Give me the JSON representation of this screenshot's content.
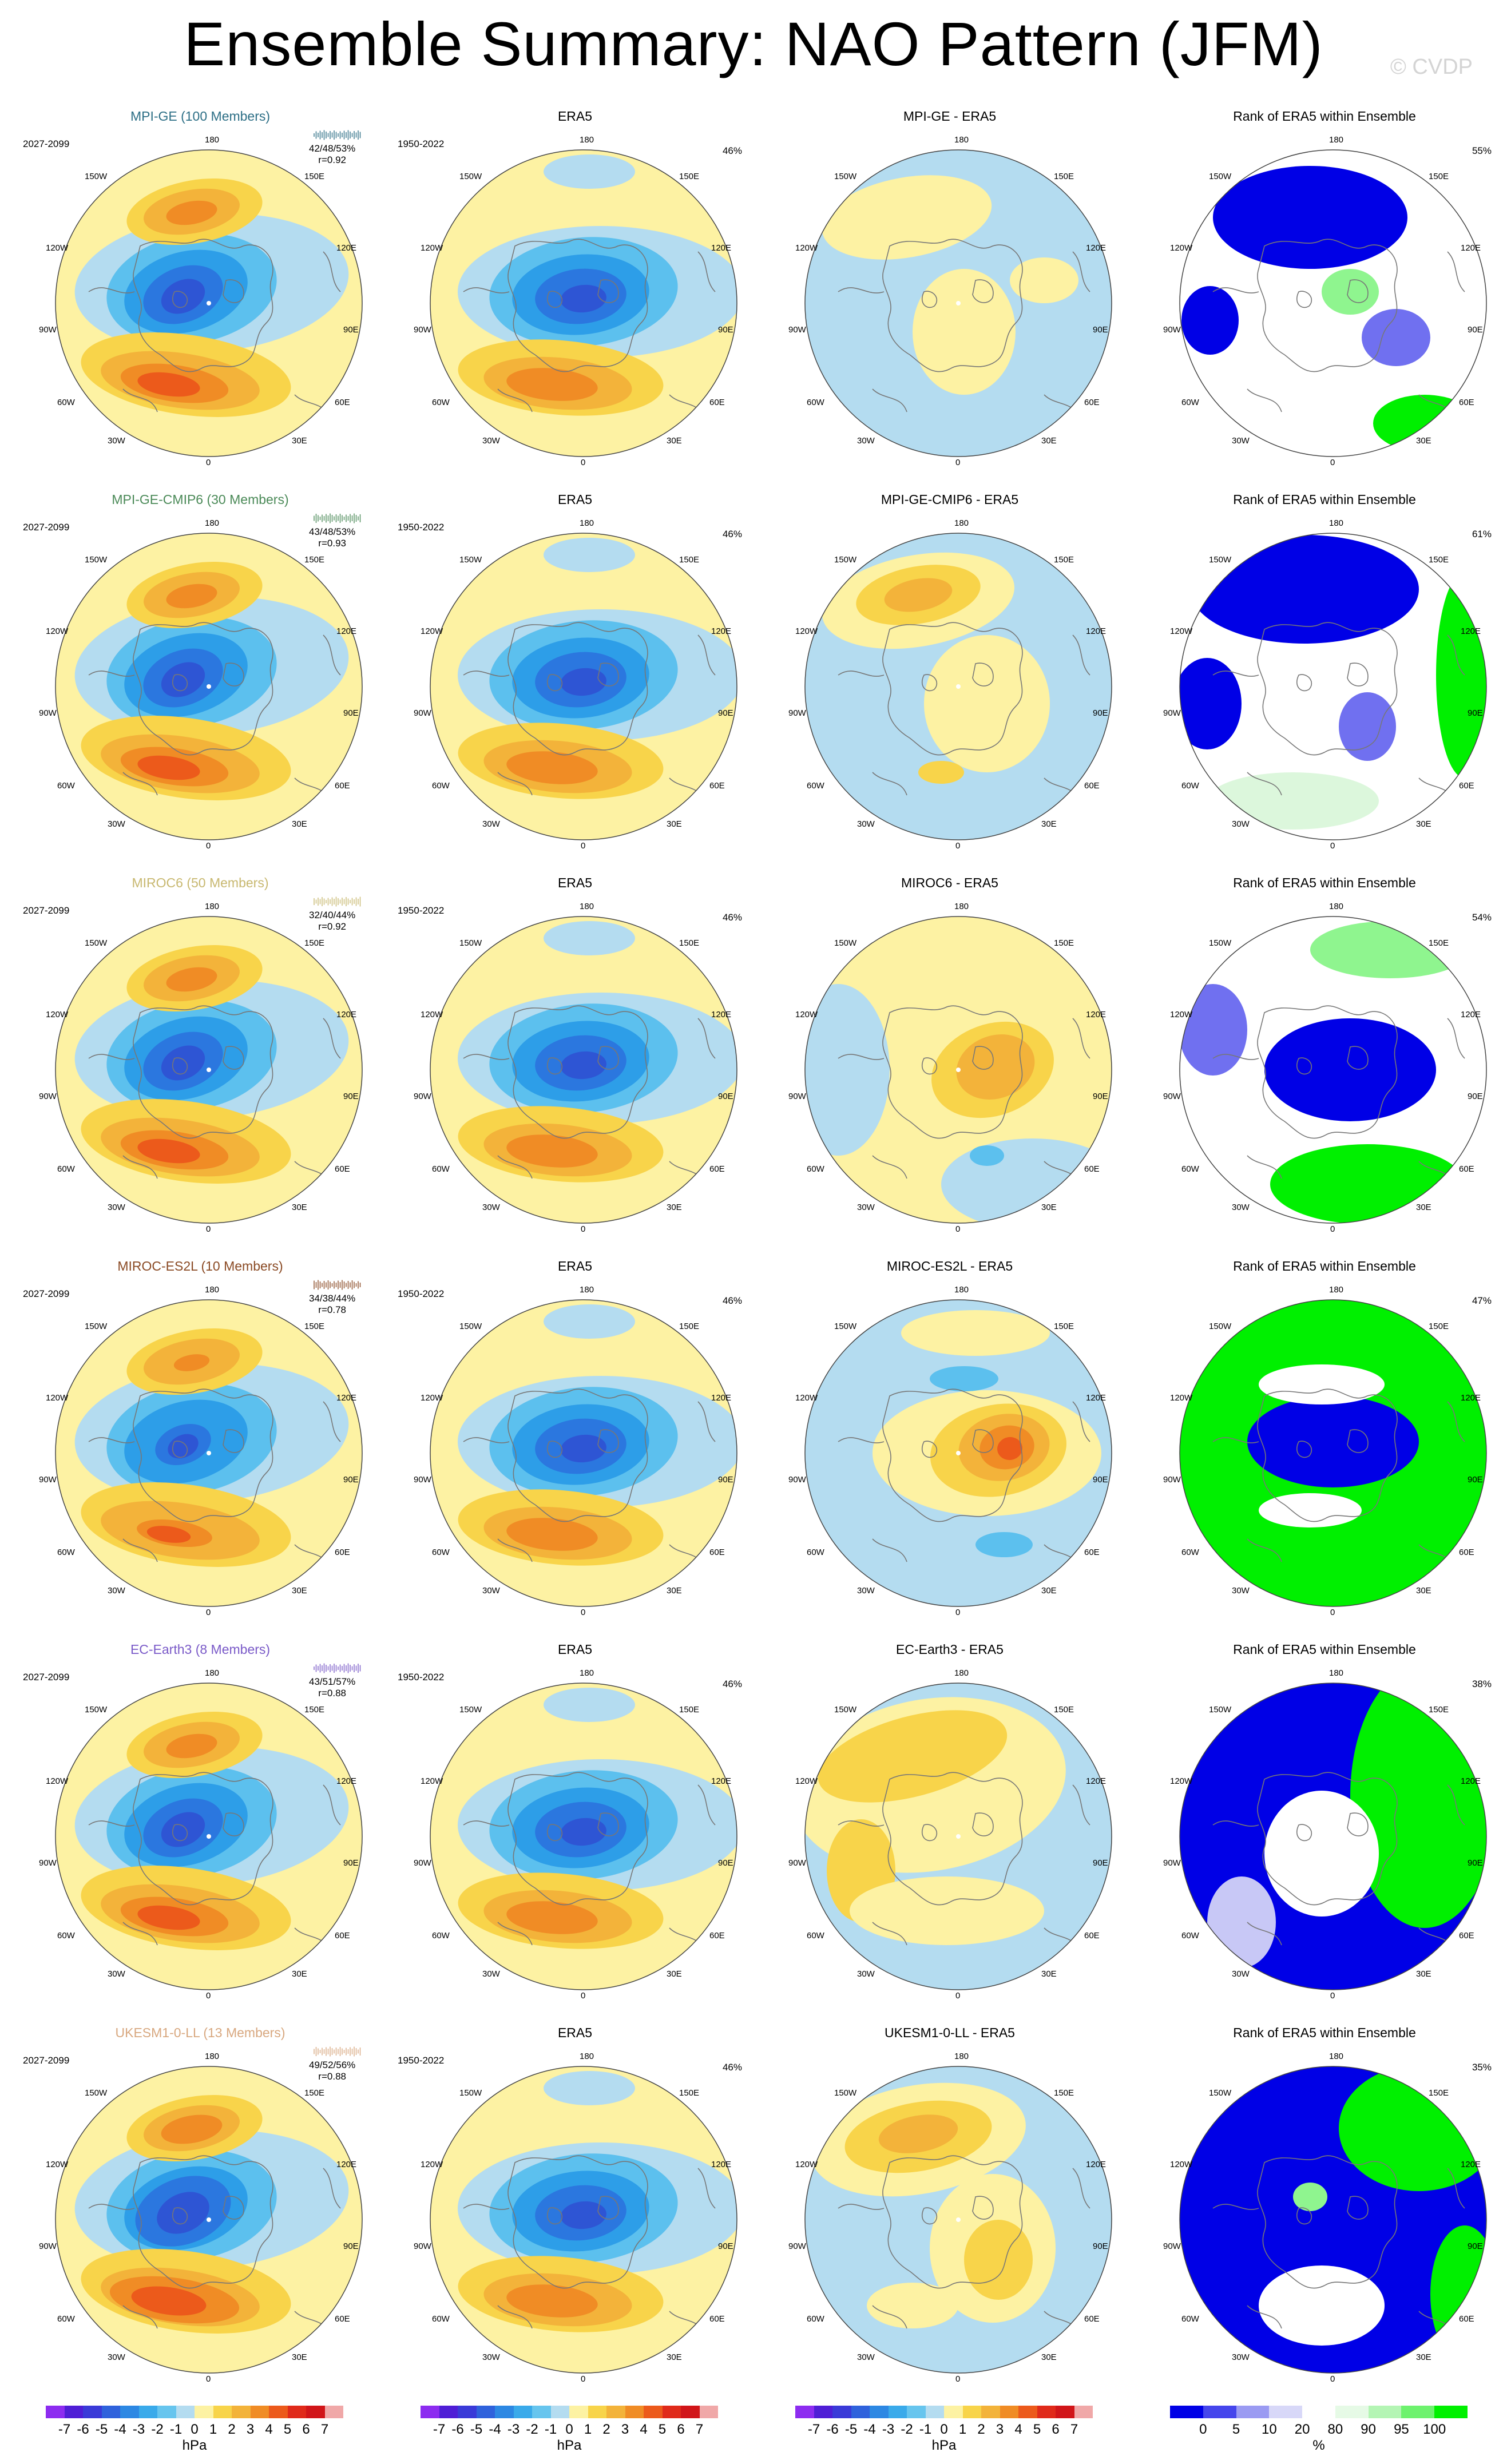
{
  "title": "Ensemble Summary: NAO Pattern (JFM)",
  "copyright": "© CVDP",
  "lon_labels": [
    "180",
    "150E",
    "120E",
    "90E",
    "60E",
    "30E",
    "0",
    "30W",
    "60W",
    "90W",
    "120W",
    "150W"
  ],
  "colors": {
    "pos": [
      "#fdf2a3",
      "#f8d44a",
      "#f3b33a",
      "#f08c25",
      "#ec5a1b",
      "#e02a1a",
      "#d11519"
    ],
    "neg": [
      "#b4dcf0",
      "#5cc0ee",
      "#2d9ee8",
      "#2b77df",
      "#2e55d4",
      "#3a2dc7",
      "#5520b8"
    ],
    "rank": [
      "#0000e6",
      "#7070f0",
      "#c8c8f6",
      "#ffffff",
      "#dcf7dc",
      "#8ff58f",
      "#00f000"
    ],
    "colorbar_diverging": [
      "#8d2cf0",
      "#4f1ed6",
      "#3a3ad8",
      "#2f62dc",
      "#2d88e3",
      "#3aaaea",
      "#67c5ee",
      "#b4dcf0",
      "#fdf2a3",
      "#f8d44a",
      "#f3b33a",
      "#f08c25",
      "#ec5a1b",
      "#e02a1a",
      "#d11519",
      "#f0a8a8"
    ],
    "colorbar_rank": [
      "#0000e6",
      "#4646ec",
      "#9b9bf2",
      "#d8d8f8",
      "#ffffff",
      "#e6fae6",
      "#b4f5b4",
      "#6ef26e",
      "#00f000"
    ]
  },
  "rows": [
    {
      "model": {
        "title": "MPI-GE (100 Members)",
        "title_color": "#2d6f86",
        "period": "2027-2099",
        "stats1": "42/48/53%",
        "stats2": "r=0.92",
        "spark_color": "#2d6f86"
      },
      "era5": {
        "title": "ERA5",
        "period": "1950-2022",
        "pct": "46%"
      },
      "diff": {
        "title": "MPI-GE - ERA5"
      },
      "rank": {
        "title": "Rank of ERA5 within Ensemble",
        "pct": "55%"
      }
    },
    {
      "model": {
        "title": "MPI-GE-CMIP6 (30 Members)",
        "title_color": "#4b8a58",
        "period": "2027-2099",
        "stats1": "43/48/53%",
        "stats2": "r=0.93",
        "spark_color": "#4b8a58"
      },
      "era5": {
        "title": "ERA5",
        "period": "1950-2022",
        "pct": "46%"
      },
      "diff": {
        "title": "MPI-GE-CMIP6 - ERA5"
      },
      "rank": {
        "title": "Rank of ERA5 within Ensemble",
        "pct": "61%"
      }
    },
    {
      "model": {
        "title": "MIROC6 (50 Members)",
        "title_color": "#c8b870",
        "period": "2027-2099",
        "stats1": "32/40/44%",
        "stats2": "r=0.92",
        "spark_color": "#c8b870"
      },
      "era5": {
        "title": "ERA5",
        "period": "1950-2022",
        "pct": "46%"
      },
      "diff": {
        "title": "MIROC6 - ERA5"
      },
      "rank": {
        "title": "Rank of ERA5 within Ensemble",
        "pct": "54%"
      }
    },
    {
      "model": {
        "title": "MIROC-ES2L (10 Members)",
        "title_color": "#8a4a24",
        "period": "2027-2099",
        "stats1": "34/38/44%",
        "stats2": "r=0.78",
        "spark_color": "#8a4a24"
      },
      "era5": {
        "title": "ERA5",
        "period": "1950-2022",
        "pct": "46%"
      },
      "diff": {
        "title": "MIROC-ES2L - ERA5"
      },
      "rank": {
        "title": "Rank of ERA5 within Ensemble",
        "pct": "47%"
      }
    },
    {
      "model": {
        "title": "EC-Earth3 (8 Members)",
        "title_color": "#7a5ac8",
        "period": "2027-2099",
        "stats1": "43/51/57%",
        "stats2": "r=0.88",
        "spark_color": "#7a5ac8"
      },
      "era5": {
        "title": "ERA5",
        "period": "1950-2022",
        "pct": "46%"
      },
      "diff": {
        "title": "EC-Earth3 - ERA5"
      },
      "rank": {
        "title": "Rank of ERA5 within Ensemble",
        "pct": "38%"
      }
    },
    {
      "model": {
        "title": "UKESM1-0-LL (13 Members)",
        "title_color": "#d8a880",
        "period": "2027-2099",
        "stats1": "49/52/56%",
        "stats2": "r=0.88",
        "spark_color": "#d8a880"
      },
      "era5": {
        "title": "ERA5",
        "period": "1950-2022",
        "pct": "46%"
      },
      "diff": {
        "title": "UKESM1-0-LL - ERA5"
      },
      "rank": {
        "title": "Rank of ERA5 within Ensemble",
        "pct": "35%"
      }
    }
  ],
  "colorbar_hpa": {
    "labels": [
      "-7",
      "-6",
      "-5",
      "-4",
      "-3",
      "-2",
      "-1",
      "0",
      "1",
      "2",
      "3",
      "4",
      "5",
      "6",
      "7"
    ],
    "unit": "hPa"
  },
  "colorbar_rank": {
    "labels": [
      "0",
      "5",
      "10",
      "20",
      "80",
      "90",
      "95",
      "100"
    ],
    "unit": "%"
  }
}
